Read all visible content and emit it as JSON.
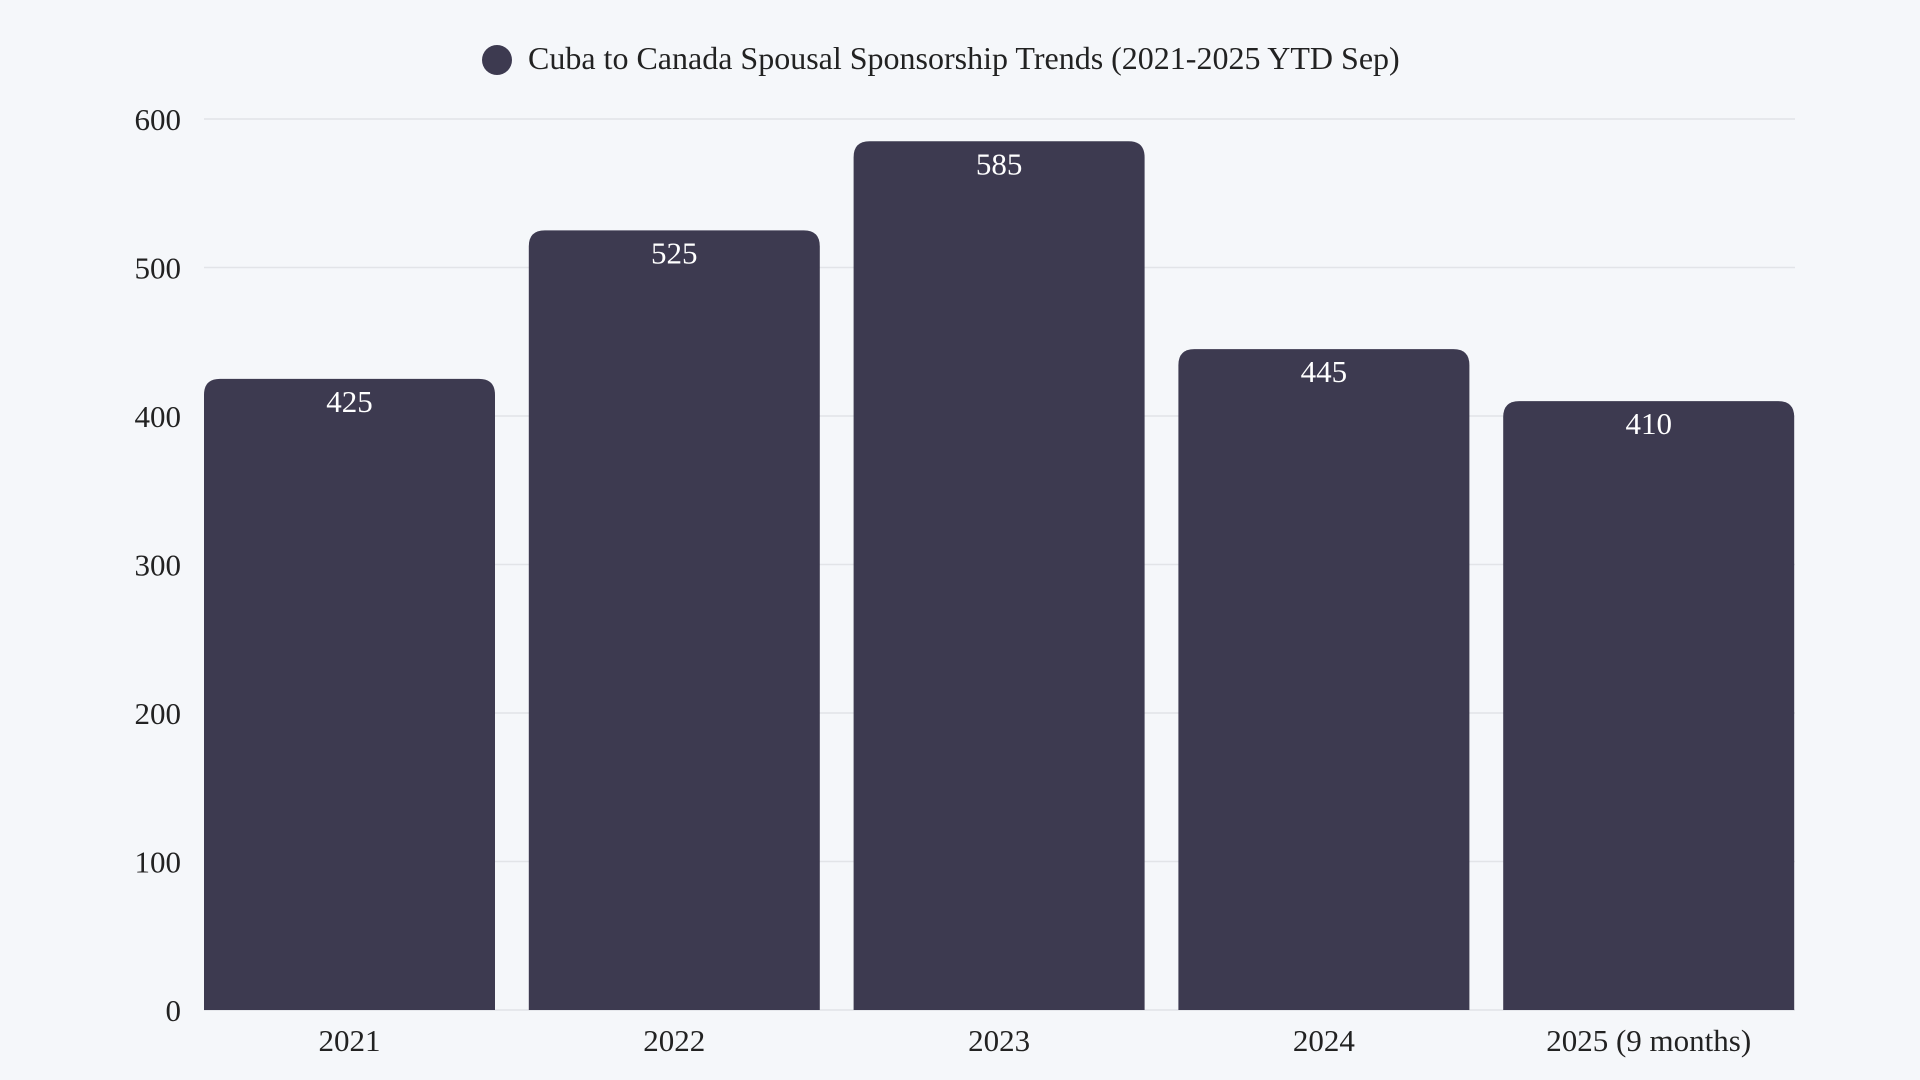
{
  "chart_data": {
    "type": "bar",
    "title": "",
    "legend": {
      "label": "Cuba to Canada Spousal Sponsorship Trends (2021-2025 YTD Sep)",
      "placement": "top-center"
    },
    "categories": [
      "2021",
      "2022",
      "2023",
      "2024",
      "2025 (9 months)"
    ],
    "series": [
      {
        "name": "Cuba to Canada Spousal Sponsorship Trends (2021-2025 YTD Sep)",
        "values": [
          425,
          525,
          585,
          445,
          410
        ]
      }
    ],
    "data_labels": [
      "425",
      "525",
      "585",
      "445",
      "410"
    ],
    "xlabel": "",
    "ylabel": "",
    "ylim": [
      0,
      600
    ],
    "yticks": [
      "0",
      "100",
      "200",
      "300",
      "400",
      "500",
      "600"
    ],
    "grid": true,
    "colors": {
      "bar": "#3d3a50",
      "background": "#f5f7fa",
      "grid": "#e2e4e8"
    }
  }
}
